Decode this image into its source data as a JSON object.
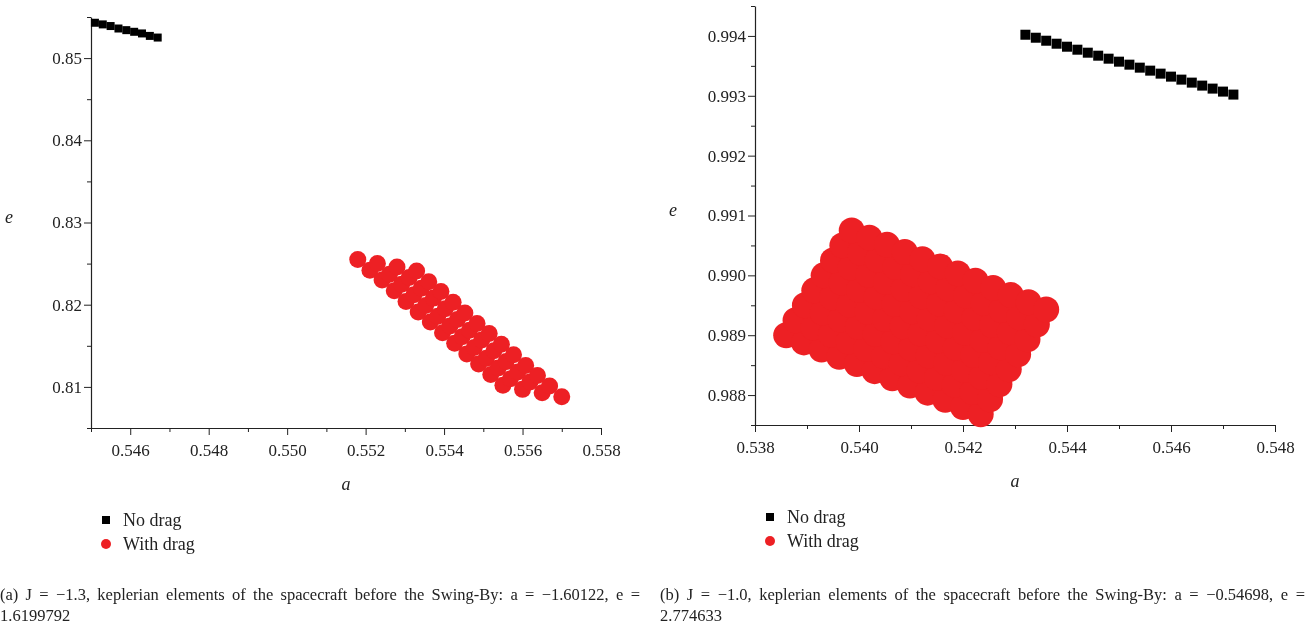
{
  "chart_data": [
    {
      "type": "scatter",
      "xlabel": "a",
      "ylabel": "e",
      "legend": "bottom left",
      "xlim": [
        0.545,
        0.558
      ],
      "xticks": [
        {
          "value": 0.545,
          "label": null
        },
        0.546,
        {
          "value": 0.547,
          "label": null
        },
        0.548,
        {
          "value": 0.549,
          "label": null
        },
        {
          "value": 0.55,
          "label": "0.550"
        },
        {
          "value": 0.551,
          "label": null
        },
        0.552,
        {
          "value": 0.553,
          "label": null
        },
        0.554,
        {
          "value": 0.555,
          "label": null
        },
        0.556,
        {
          "value": 0.557,
          "label": null
        },
        0.558
      ],
      "ylim": [
        0.805,
        0.855
      ],
      "yticks": [
        {
          "value": 0.805,
          "label": null
        },
        0.81,
        {
          "value": 0.815,
          "label": null
        },
        0.82,
        {
          "value": 0.825,
          "label": null
        },
        0.83,
        {
          "value": 0.835,
          "label": null
        },
        0.84,
        {
          "value": 0.845,
          "label": null
        },
        0.85,
        {
          "value": 0.855,
          "label": null
        }
      ],
      "series": [
        {
          "name": "No drag",
          "color": "#000000",
          "marker": "square",
          "x": [
            0.5451,
            0.5453,
            0.5455,
            0.5457,
            0.5459,
            0.5461,
            0.5463,
            0.5465,
            0.5467
          ],
          "values": [
            0.8543,
            0.8541,
            0.8539,
            0.8536,
            0.8534,
            0.8532,
            0.853,
            0.8527,
            0.8525
          ]
        },
        {
          "name": "With drag",
          "color": "#ed2024",
          "marker": "circle",
          "x": [
            0.5518,
            0.55211,
            0.55242,
            0.55273,
            0.55303,
            0.55334,
            0.55365,
            0.55396,
            0.55427,
            0.55458,
            0.55488,
            0.55519,
            0.5555,
            0.5523,
            0.55261,
            0.55292,
            0.55323,
            0.55353,
            0.55384,
            0.55415,
            0.55446,
            0.55477,
            0.55508,
            0.55538,
            0.55569,
            0.556,
            0.5528,
            0.55311,
            0.55342,
            0.55373,
            0.55403,
            0.55434,
            0.55465,
            0.55496,
            0.55527,
            0.55558,
            0.55588,
            0.55619,
            0.5565,
            0.5533,
            0.55361,
            0.55392,
            0.55423,
            0.55453,
            0.55484,
            0.55515,
            0.55546,
            0.55577,
            0.55608,
            0.55638,
            0.55669,
            0.557
          ],
          "values": [
            0.8255,
            0.8242,
            0.823,
            0.8217,
            0.8204,
            0.8191,
            0.8179,
            0.8166,
            0.8153,
            0.814,
            0.8128,
            0.8115,
            0.8102,
            0.825,
            0.8237,
            0.8225,
            0.8212,
            0.8199,
            0.8186,
            0.8174,
            0.8161,
            0.8148,
            0.8135,
            0.8123,
            0.811,
            0.8097,
            0.8246,
            0.8233,
            0.822,
            0.8208,
            0.8195,
            0.8182,
            0.8169,
            0.8157,
            0.8144,
            0.8131,
            0.8118,
            0.8106,
            0.8093,
            0.8241,
            0.8228,
            0.8216,
            0.8203,
            0.819,
            0.8177,
            0.8165,
            0.8152,
            0.8139,
            0.8126,
            0.8114,
            0.8101,
            0.8088
          ]
        }
      ],
      "annotations": [
        "(a) J = −1.3, keplerian elements of the spacecraft before the Swing-By: a = −1.60122, e = 1.6199792"
      ]
    },
    {
      "type": "scatter",
      "xlabel": "a",
      "ylabel": "e",
      "legend": "bottom left",
      "xlim": [
        0.538,
        0.548
      ],
      "xticks": [
        0.538,
        {
          "value": 0.539,
          "label": null
        },
        {
          "value": 0.54,
          "label": "0.540"
        },
        {
          "value": 0.541,
          "label": null
        },
        0.542,
        {
          "value": 0.543,
          "label": null
        },
        0.544,
        {
          "value": 0.545,
          "label": null
        },
        0.546,
        {
          "value": 0.547,
          "label": null
        },
        0.548
      ],
      "ylim": [
        0.9875,
        0.9945
      ],
      "yticks": [
        {
          "value": 0.9875,
          "label": null
        },
        0.988,
        {
          "value": 0.9885,
          "label": null
        },
        0.989,
        {
          "value": 0.9895,
          "label": null
        },
        {
          "value": 0.99,
          "label": "0.990"
        },
        {
          "value": 0.9905,
          "label": null
        },
        0.991,
        {
          "value": 0.9915,
          "label": null
        },
        0.992,
        {
          "value": 0.9925,
          "label": null
        },
        0.993,
        {
          "value": 0.9935,
          "label": null
        },
        0.994,
        {
          "value": 0.9945,
          "label": null
        }
      ],
      "series": [
        {
          "name": "No drag",
          "color": "#000000",
          "marker": "square",
          "x": [
            0.5432,
            0.5434,
            0.5436,
            0.5438,
            0.544,
            0.5442,
            0.5444,
            0.5446,
            0.5448,
            0.545,
            0.5452,
            0.5454,
            0.5456,
            0.5458,
            0.546,
            0.5462,
            0.5464,
            0.5466,
            0.5468,
            0.547,
            0.5472
          ],
          "values": [
            0.99402,
            0.99397,
            0.99392,
            0.99387,
            0.99382,
            0.99377,
            0.99372,
            0.99367,
            0.99362,
            0.99357,
            0.99352,
            0.99347,
            0.99342,
            0.99337,
            0.99332,
            0.99327,
            0.99322,
            0.99317,
            0.99312,
            0.99307,
            0.99302
          ]
        },
        {
          "name": "With drag",
          "color": "#ed2024",
          "marker": "circle",
          "x": [
            0.5386,
            0.53894,
            0.53928,
            0.53962,
            0.53996,
            0.5403,
            0.54064,
            0.54098,
            0.54132,
            0.54166,
            0.542,
            0.54234,
            0.53878,
            0.53912,
            0.53946,
            0.5398,
            0.54014,
            0.54048,
            0.54082,
            0.54116,
            0.5415,
            0.54184,
            0.54218,
            0.54252,
            0.53896,
            0.5393,
            0.53964,
            0.53998,
            0.54032,
            0.54066,
            0.541,
            0.54134,
            0.54168,
            0.54202,
            0.54236,
            0.5427,
            0.53914,
            0.53948,
            0.53982,
            0.54016,
            0.5405,
            0.54084,
            0.54118,
            0.54152,
            0.54186,
            0.5422,
            0.54254,
            0.54288,
            0.53932,
            0.53966,
            0.54,
            0.54034,
            0.54068,
            0.54102,
            0.54136,
            0.5417,
            0.54204,
            0.54238,
            0.54272,
            0.54306,
            0.5395,
            0.53984,
            0.54018,
            0.54052,
            0.54086,
            0.5412,
            0.54154,
            0.54188,
            0.54222,
            0.54256,
            0.5429,
            0.54324,
            0.53968,
            0.54002,
            0.54036,
            0.5407,
            0.54104,
            0.54138,
            0.54172,
            0.54206,
            0.5424,
            0.54274,
            0.54308,
            0.54342,
            0.53986,
            0.5402,
            0.54054,
            0.54088,
            0.54122,
            0.54156,
            0.5419,
            0.54224,
            0.54258,
            0.54292,
            0.54326,
            0.5436
          ],
          "values": [
            0.989,
            0.98888,
            0.98876,
            0.98864,
            0.98852,
            0.9884,
            0.98828,
            0.98816,
            0.98804,
            0.98792,
            0.9878,
            0.98768,
            0.98925,
            0.98913,
            0.98901,
            0.98889,
            0.98877,
            0.98865,
            0.98853,
            0.98841,
            0.98829,
            0.98817,
            0.98805,
            0.98793,
            0.9895,
            0.98938,
            0.98926,
            0.98914,
            0.98902,
            0.9889,
            0.98878,
            0.98866,
            0.98854,
            0.98842,
            0.9883,
            0.98818,
            0.98975,
            0.98963,
            0.98951,
            0.98939,
            0.98927,
            0.98915,
            0.98903,
            0.98891,
            0.98879,
            0.98867,
            0.98855,
            0.98843,
            0.99,
            0.98988,
            0.98976,
            0.98964,
            0.98952,
            0.9894,
            0.98928,
            0.98916,
            0.98904,
            0.98892,
            0.9888,
            0.98868,
            0.99025,
            0.99013,
            0.99001,
            0.98989,
            0.98977,
            0.98965,
            0.98953,
            0.98941,
            0.98929,
            0.98917,
            0.98905,
            0.98893,
            0.9905,
            0.99038,
            0.99026,
            0.99014,
            0.99002,
            0.9899,
            0.98978,
            0.98966,
            0.98954,
            0.98942,
            0.9893,
            0.98918,
            0.99075,
            0.99063,
            0.99051,
            0.99039,
            0.99027,
            0.99015,
            0.99003,
            0.98991,
            0.98979,
            0.98967,
            0.98955,
            0.98943
          ]
        }
      ],
      "annotations": [
        "(b) J = −1.0, keplerian elements of the spacecraft before the Swing-By: a = −0.54698, e = 2.774633"
      ]
    }
  ]
}
